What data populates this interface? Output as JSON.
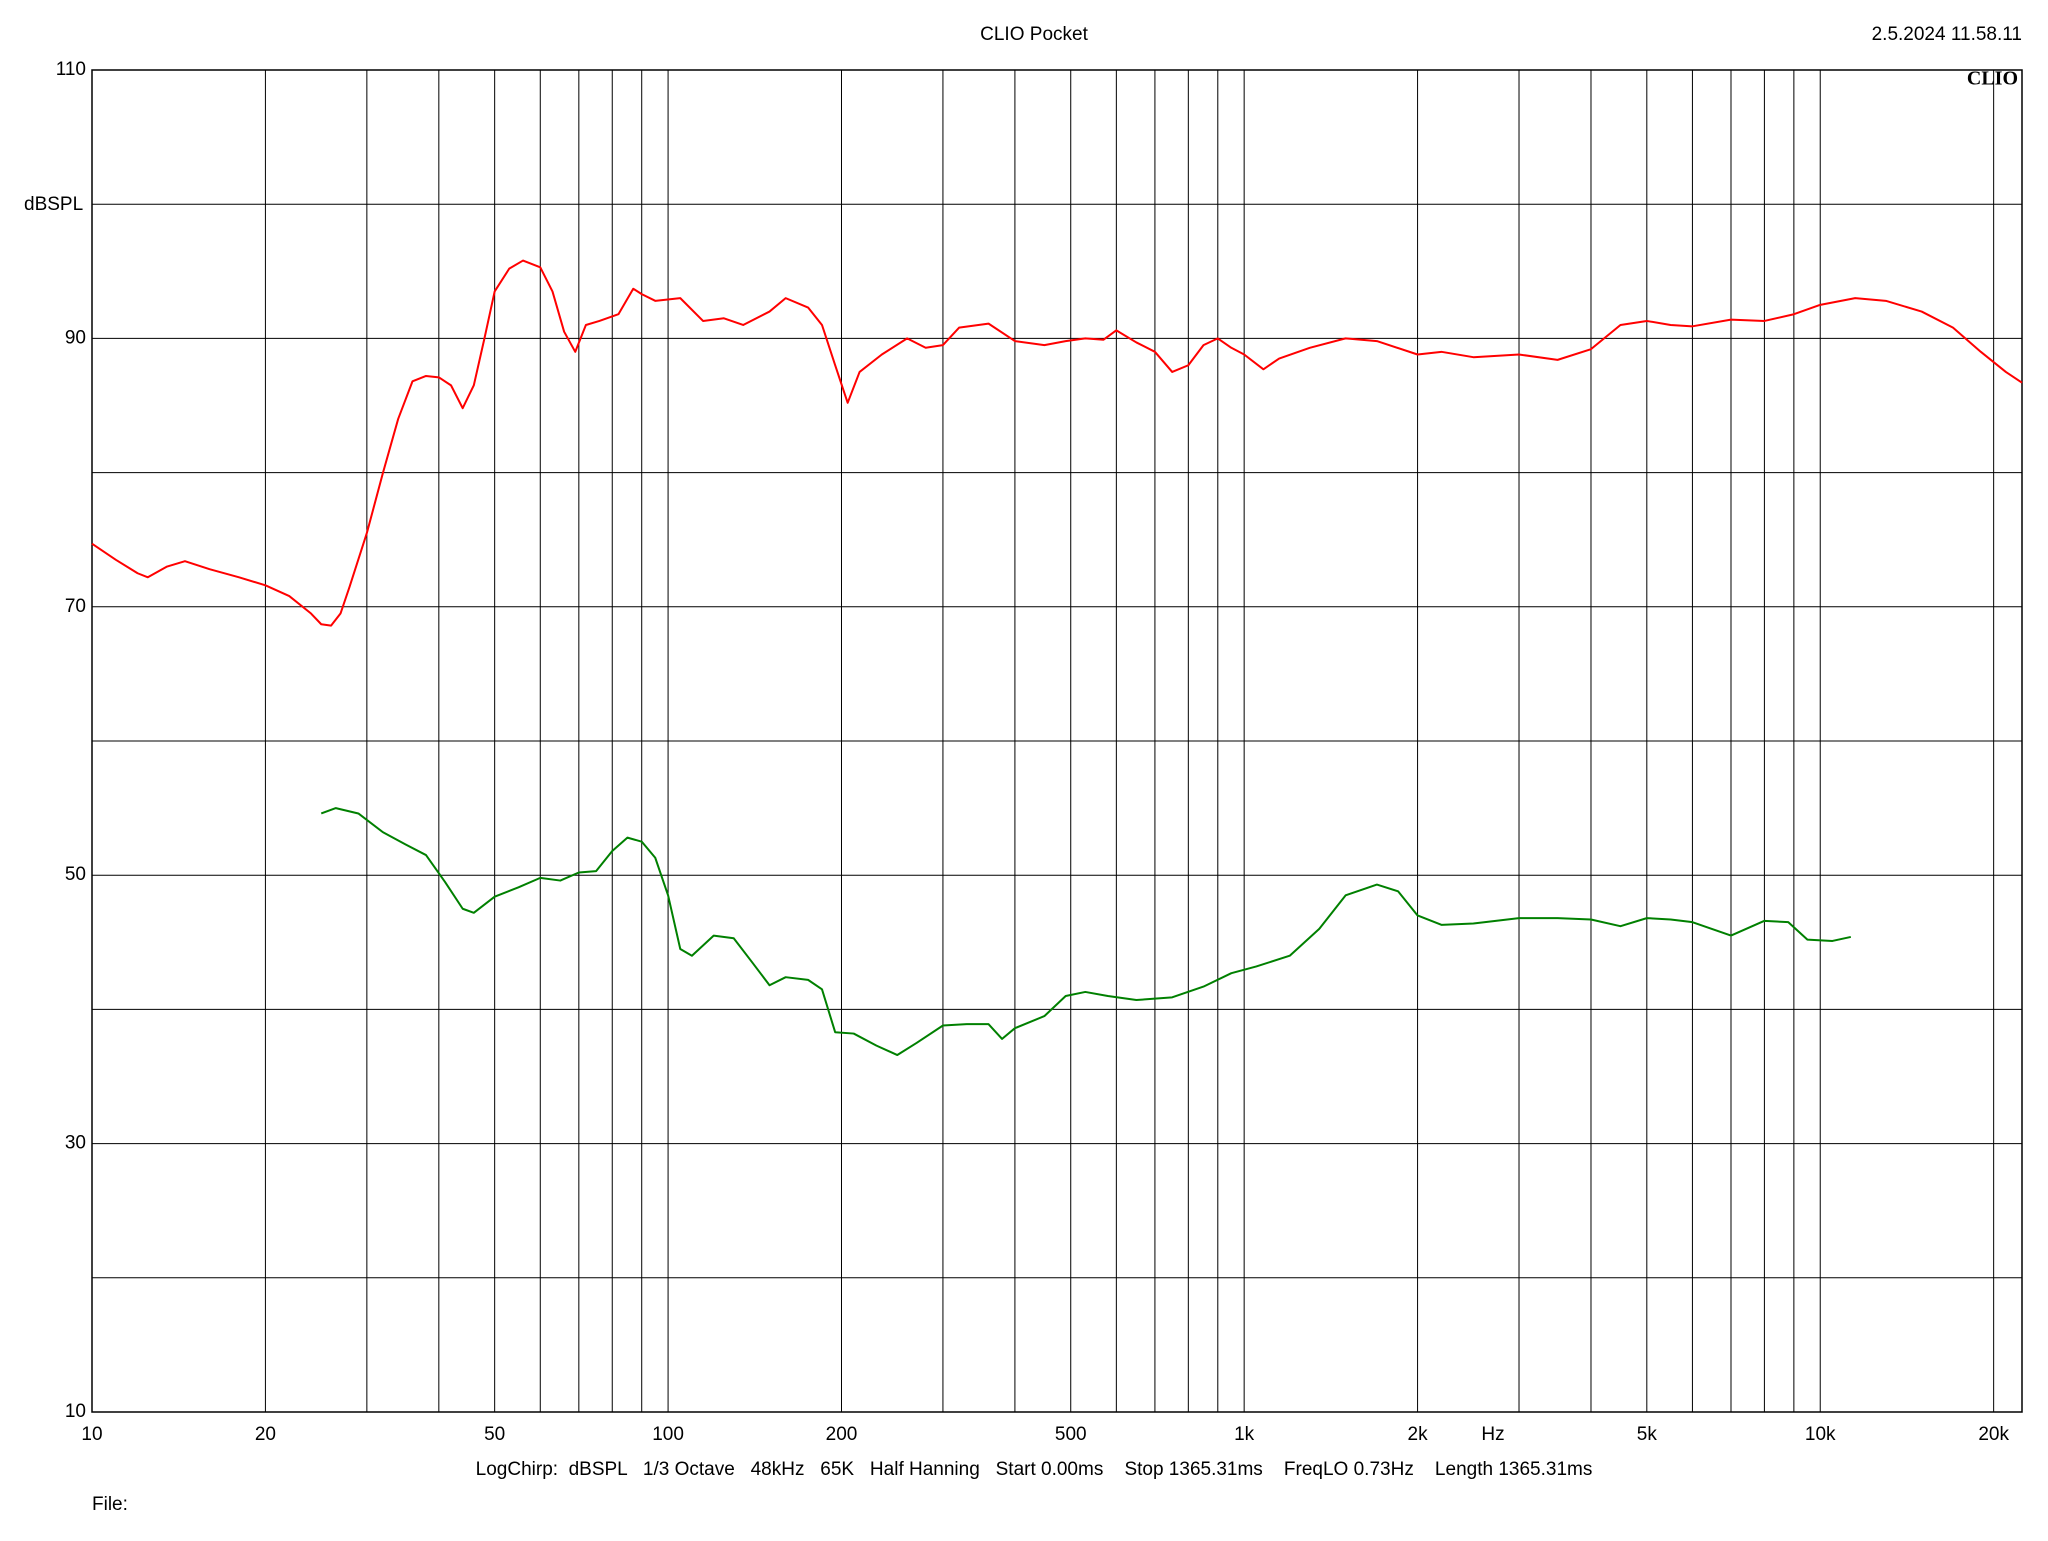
{
  "chart_data": {
    "type": "line",
    "title": "CLIO Pocket",
    "timestamp": "2.5.2024 11.58.11",
    "logo": "CLIO",
    "y_label": "dBSPL",
    "x_label": "Hz",
    "footer": "LogChirp:  dBSPL   1/3 Octave   48kHz   65K   Half Hanning   Start 0.00ms    Stop 1365.31ms    FreqLO 0.73Hz    Length 1365.31ms",
    "file_label": "File:",
    "x_log": true,
    "xlim": [
      10,
      22400
    ],
    "ylim": [
      10,
      110
    ],
    "xticks": [
      10,
      20,
      50,
      100,
      200,
      500,
      {
        "value": 1000,
        "label": "1k"
      },
      {
        "value": 2000,
        "label": "2k"
      },
      {
        "value": 5000,
        "label": "5k"
      },
      {
        "value": 10000,
        "label": "10k"
      },
      {
        "value": 20000,
        "label": "20k"
      }
    ],
    "yticks": [
      10,
      30,
      50,
      70,
      90,
      110
    ],
    "xgrid": [
      20,
      30,
      40,
      50,
      60,
      70,
      80,
      90,
      100,
      200,
      300,
      400,
      500,
      600,
      700,
      800,
      900,
      1000,
      2000,
      3000,
      4000,
      5000,
      6000,
      7000,
      8000,
      9000,
      10000,
      20000
    ],
    "ygrid": [
      20,
      30,
      40,
      50,
      60,
      70,
      80,
      90,
      100
    ],
    "series": [
      {
        "color": "#ff0000",
        "x": [
          10,
          11,
          12,
          12.5,
          13.5,
          14.5,
          16,
          18,
          20,
          22,
          24,
          25,
          26,
          27,
          28,
          30,
          32,
          34,
          36,
          38,
          40,
          42,
          44,
          46,
          48,
          50,
          53,
          56,
          60,
          63,
          66,
          69,
          72,
          76,
          82,
          87,
          90,
          95,
          105,
          115,
          125,
          135,
          150,
          160,
          175,
          185,
          195,
          205,
          215,
          235,
          260,
          280,
          300,
          320,
          360,
          400,
          450,
          490,
          530,
          570,
          600,
          650,
          700,
          750,
          800,
          850,
          900,
          950,
          1000,
          1080,
          1150,
          1300,
          1500,
          1700,
          2000,
          2200,
          2500,
          3000,
          3500,
          4000,
          4500,
          5000,
          5500,
          6000,
          7000,
          8000,
          9000,
          10000,
          11500,
          13000,
          15000,
          17000,
          19000,
          21000,
          22400
        ],
        "values": [
          74.7,
          73.5,
          72.5,
          72.2,
          73,
          73.4,
          72.8,
          72.2,
          71.6,
          70.8,
          69.5,
          68.7,
          68.6,
          69.5,
          71.5,
          75.5,
          80,
          84,
          86.8,
          87.2,
          87.1,
          86.5,
          84.8,
          86.5,
          90,
          93.5,
          95.2,
          95.8,
          95.3,
          93.5,
          90.5,
          89,
          91,
          91.3,
          91.8,
          93.7,
          93.3,
          92.8,
          93,
          91.3,
          91.5,
          91,
          92,
          93,
          92.3,
          91,
          88,
          85.2,
          87.5,
          88.8,
          90,
          89.3,
          89.5,
          90.8,
          91.1,
          89.8,
          89.5,
          89.8,
          90,
          89.9,
          90.6,
          89.7,
          89,
          87.5,
          88,
          89.5,
          90,
          89.3,
          88.8,
          87.7,
          88.5,
          89.3,
          90,
          89.8,
          88.8,
          89,
          88.6,
          88.8,
          88.4,
          89.2,
          91,
          91.3,
          91,
          90.9,
          91.4,
          91.3,
          91.8,
          92.5,
          93,
          92.8,
          92,
          90.8,
          89,
          87.5,
          86.7
        ]
      },
      {
        "color": "#008000",
        "x": [
          25,
          26.5,
          29,
          32,
          35,
          38,
          41,
          44,
          46,
          50,
          55,
          60,
          65,
          70,
          75,
          80,
          85,
          90,
          95,
          100,
          105,
          110,
          120,
          130,
          140,
          150,
          160,
          175,
          185,
          195,
          210,
          230,
          250,
          270,
          300,
          330,
          360,
          380,
          400,
          450,
          490,
          530,
          580,
          650,
          700,
          750,
          850,
          950,
          1050,
          1200,
          1350,
          1500,
          1700,
          1850,
          2000,
          2200,
          2500,
          3000,
          3500,
          4000,
          4500,
          5000,
          5500,
          6000,
          7000,
          8000,
          8800,
          9500,
          10500,
          11300
        ],
        "values": [
          54.6,
          55,
          54.6,
          53.2,
          52.3,
          51.5,
          49.5,
          47.5,
          47.2,
          48.4,
          49.1,
          49.8,
          49.6,
          50.2,
          50.3,
          51.8,
          52.8,
          52.5,
          51.3,
          48.5,
          44.5,
          44,
          45.5,
          45.3,
          43.5,
          41.8,
          42.4,
          42.2,
          41.5,
          38.3,
          38.2,
          37.3,
          36.6,
          37.5,
          38.8,
          38.9,
          38.9,
          37.8,
          38.6,
          39.5,
          41,
          41.3,
          41,
          40.7,
          40.8,
          40.9,
          41.7,
          42.7,
          43.2,
          44,
          46,
          48.5,
          49.3,
          48.8,
          47,
          46.3,
          46.4,
          46.8,
          46.8,
          46.7,
          46.2,
          46.8,
          46.7,
          46.5,
          45.5,
          46.6,
          46.5,
          45.2,
          45.1,
          45.4
        ]
      }
    ]
  }
}
